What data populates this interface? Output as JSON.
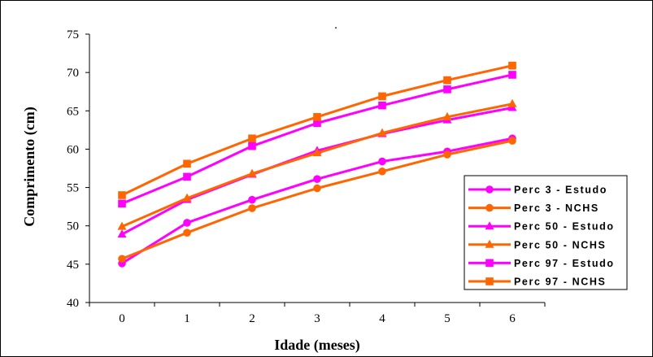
{
  "chart_data": {
    "type": "line",
    "title": ".",
    "xlabel": "Idade (meses)",
    "ylabel": "Comprimento (cm)",
    "categories": [
      "0",
      "1",
      "2",
      "3",
      "4",
      "5",
      "6"
    ],
    "ylim": [
      40,
      75
    ],
    "yticks": [
      "40",
      "45",
      "50",
      "55",
      "60",
      "65",
      "70",
      "75"
    ],
    "grid": false,
    "legend_position": "right",
    "series": [
      {
        "name": "Perc 3  - Estudo",
        "color": "#FF00FF",
        "marker": "circle",
        "values": [
          45.1,
          50.4,
          53.4,
          56.1,
          58.4,
          59.7,
          61.4
        ]
      },
      {
        "name": "Perc 3  - NCHS",
        "color": "#FF6600",
        "marker": "circle",
        "values": [
          45.7,
          49.1,
          52.3,
          54.9,
          57.1,
          59.3,
          61.1
        ]
      },
      {
        "name": "Perc 50  - Estudo",
        "color": "#FF00FF",
        "marker": "triangle",
        "values": [
          48.9,
          53.4,
          56.7,
          59.8,
          62.0,
          63.8,
          65.4
        ]
      },
      {
        "name": "Perc 50  - NCHS",
        "color": "#FF6600",
        "marker": "triangle",
        "values": [
          49.9,
          53.6,
          56.8,
          59.5,
          62.1,
          64.2,
          65.9
        ]
      },
      {
        "name": "Perc 97  - Estudo",
        "color": "#FF00FF",
        "marker": "square",
        "values": [
          52.9,
          56.4,
          60.4,
          63.4,
          65.7,
          67.8,
          69.7
        ]
      },
      {
        "name": "Perc 97  - NCHS",
        "color": "#FF6600",
        "marker": "square",
        "values": [
          54.0,
          58.1,
          61.4,
          64.2,
          66.9,
          69.0,
          70.9
        ]
      }
    ]
  }
}
